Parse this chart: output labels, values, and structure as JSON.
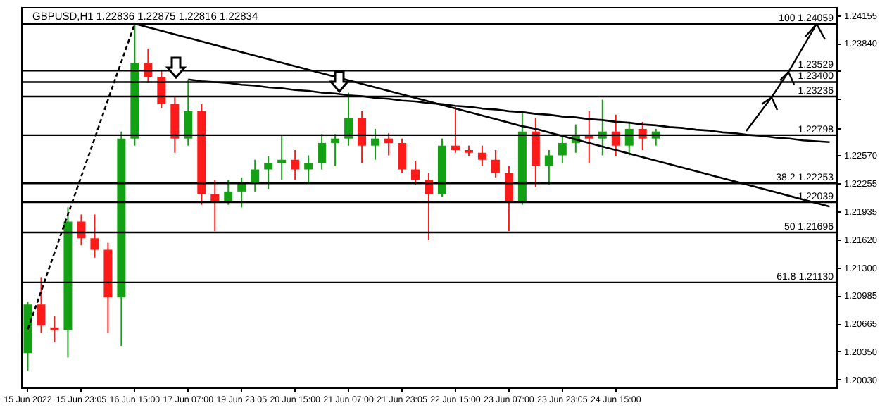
{
  "chart_data": {
    "type": "candlestick",
    "title": "GBPUSD,H1  1.22836 1.22875 1.22816 1.22834",
    "categories": [
      "15 Jun 2022",
      null,
      null,
      null,
      "15 Jun 23:05",
      null,
      null,
      null,
      "16 Jun 15:00",
      null,
      null,
      null,
      "17 Jun 07:00",
      null,
      null,
      null,
      "19 Jun 23:05",
      null,
      null,
      null,
      "20 Jun 15:00",
      null,
      null,
      null,
      "21 Jun 07:00",
      null,
      null,
      null,
      "21 Jun 23:05",
      null,
      null,
      null,
      "22 Jun 15:00",
      null,
      null,
      null,
      "23 Jun 07:00",
      null,
      null,
      null,
      "23 Jun 23:05",
      null,
      null,
      null,
      "24 Jun 15:00",
      null,
      null,
      null,
      null,
      null,
      null,
      null,
      null,
      null,
      null,
      null,
      null,
      null,
      null,
      null,
      null
    ],
    "ohlc": [
      [
        1.2033,
        1.2091,
        1.2013,
        1.2088
      ],
      [
        1.2088,
        1.2119,
        1.2056,
        1.2064
      ],
      [
        1.2062,
        1.2075,
        1.2045,
        1.2059
      ],
      [
        1.2059,
        1.2198,
        1.2028,
        1.2182
      ],
      [
        1.2182,
        1.219,
        1.2155,
        1.2163
      ],
      [
        1.2163,
        1.219,
        1.2141,
        1.215
      ],
      [
        1.215,
        1.2158,
        1.2056,
        1.2096
      ],
      [
        1.2096,
        1.2284,
        1.2041,
        1.2276
      ],
      [
        1.2276,
        1.2406,
        1.2268,
        1.2362
      ],
      [
        1.2362,
        1.2378,
        1.2339,
        1.2346
      ],
      [
        1.2346,
        1.2354,
        1.231,
        1.2315
      ],
      [
        1.2315,
        1.2323,
        1.226,
        1.2276
      ],
      [
        1.2276,
        1.2343,
        1.2268,
        1.2307
      ],
      [
        1.2307,
        1.2315,
        1.2201,
        1.2213
      ],
      [
        1.2213,
        1.2229,
        1.2171,
        1.2205
      ],
      [
        1.2205,
        1.2229,
        1.2201,
        1.2216
      ],
      [
        1.2216,
        1.2232,
        1.2198,
        1.2226
      ],
      [
        1.2226,
        1.2252,
        1.2216,
        1.2241
      ],
      [
        1.2241,
        1.2256,
        1.2219,
        1.2248
      ],
      [
        1.2248,
        1.2279,
        1.2229,
        1.2252
      ],
      [
        1.2252,
        1.2263,
        1.2229,
        1.2241
      ],
      [
        1.2241,
        1.2257,
        1.2226,
        1.2248
      ],
      [
        1.2248,
        1.2281,
        1.2241,
        1.2271
      ],
      [
        1.2271,
        1.2281,
        1.2245,
        1.2276
      ],
      [
        1.2276,
        1.2328,
        1.2268,
        1.2299
      ],
      [
        1.2299,
        1.2307,
        1.2248,
        1.2268
      ],
      [
        1.2268,
        1.2287,
        1.2252,
        1.2276
      ],
      [
        1.2276,
        1.2282,
        1.2257,
        1.2271
      ],
      [
        1.2271,
        1.2276,
        1.2237,
        1.2241
      ],
      [
        1.2241,
        1.2251,
        1.2224,
        1.2229
      ],
      [
        1.2229,
        1.2237,
        1.2161,
        1.2213
      ],
      [
        1.2213,
        1.2276,
        1.221,
        1.2268
      ],
      [
        1.2268,
        1.2312,
        1.226,
        1.2263
      ],
      [
        1.2263,
        1.2268,
        1.2256,
        1.226
      ],
      [
        1.226,
        1.2268,
        1.2245,
        1.2252
      ],
      [
        1.2252,
        1.2263,
        1.2232,
        1.2237
      ],
      [
        1.2237,
        1.2245,
        1.2171,
        1.2205
      ],
      [
        1.2205,
        1.2307,
        1.2201,
        1.2284
      ],
      [
        1.2284,
        1.2299,
        1.2221,
        1.2245
      ],
      [
        1.2245,
        1.2263,
        1.2224,
        1.2257
      ],
      [
        1.2257,
        1.2279,
        1.2248,
        1.2271
      ],
      [
        1.2271,
        1.2292,
        1.226,
        1.2279
      ],
      [
        1.2279,
        1.2307,
        1.2248,
        1.2276
      ],
      [
        1.2276,
        1.232,
        1.2257,
        1.2284
      ],
      [
        1.2284,
        1.2303,
        1.2256,
        1.2268
      ],
      [
        1.2268,
        1.2295,
        1.2257,
        1.2287
      ],
      [
        1.2287,
        1.2295,
        1.2263,
        1.2276
      ],
      [
        1.2276,
        1.2287,
        1.2268,
        1.2284
      ],
      null,
      null,
      null,
      null,
      null,
      null,
      null,
      null,
      null,
      null,
      null,
      null,
      null
    ],
    "colors": [
      "#14a014",
      "#ff1a1a",
      "#ff1a1a",
      "#14a014",
      "#ff1a1a",
      "#ff1a1a",
      "#ff1a1a",
      "#14a014",
      "#14a014",
      "#ff1a1a",
      "#ff1a1a",
      "#ff1a1a",
      "#14a014",
      "#ff1a1a",
      "#ff1a1a",
      "#14a014",
      "#14a014",
      "#14a014",
      "#14a014",
      "#14a014",
      "#ff1a1a",
      "#14a014",
      "#14a014",
      "#14a014",
      "#14a014",
      "#ff1a1a",
      "#14a014",
      "#ff1a1a",
      "#ff1a1a",
      "#ff1a1a",
      "#ff1a1a",
      "#14a014",
      "#ff1a1a",
      "#ff1a1a",
      "#ff1a1a",
      "#ff1a1a",
      "#ff1a1a",
      "#14a014",
      "#ff1a1a",
      "#14a014",
      "#14a014",
      "#14a014",
      "#ff1a1a",
      "#14a014",
      "#ff1a1a",
      "#14a014",
      "#ff1a1a",
      "#14a014",
      null,
      null,
      null,
      null,
      null,
      null,
      null,
      null,
      null,
      null,
      null,
      null,
      null
    ],
    "ylim": [
      1.1994,
      1.2425
    ],
    "yticks": [
      1.24155,
      {
        "value": 1.2384,
        "label": "1.23840"
      },
      {
        "value": 1.23525,
        "label": null
      },
      {
        "value": 1.2321,
        "label": null
      },
      {
        "value": 1.22885,
        "label": null
      },
      {
        "value": 1.2257,
        "label": "1.22570"
      },
      1.22255,
      1.21935,
      {
        "value": 1.2162,
        "label": "1.21620"
      },
      {
        "value": 1.213,
        "label": "1.21300"
      },
      1.20985,
      1.20665,
      {
        "value": 1.2035,
        "label": "1.20350"
      },
      {
        "value": 1.2003,
        "label": "1.20030"
      }
    ],
    "series": [
      {
        "type": "line",
        "color": "#000000",
        "line_style": "dashed",
        "values": [
          1.206,
          1.2103,
          1.2147,
          1.219,
          1.2233,
          1.2276,
          1.232,
          1.2363,
          1.2406,
          null,
          null,
          null,
          null,
          null,
          null,
          null,
          null,
          null,
          null,
          null,
          null,
          null,
          null,
          null,
          null,
          null,
          null,
          null,
          null,
          null,
          null,
          null,
          null,
          null,
          null,
          null,
          null,
          null,
          null,
          null,
          null,
          null,
          null,
          null,
          null,
          null,
          null,
          null,
          null,
          null,
          null,
          null,
          null,
          null,
          null,
          null,
          null,
          null,
          null,
          null,
          null
        ]
      },
      {
        "type": "line",
        "color": "#000000",
        "line_style": "solid",
        "values": [
          null,
          null,
          null,
          null,
          null,
          null,
          null,
          null,
          1.2406,
          1.2402,
          1.2398,
          1.2394,
          1.239,
          1.2386,
          1.2382,
          1.2378,
          1.2374,
          1.237,
          1.2366,
          1.2362,
          1.2358,
          1.2354,
          1.235,
          1.2346,
          1.2342,
          1.2338,
          1.2334,
          1.233,
          1.2326,
          1.2322,
          1.2318,
          1.2314,
          1.231,
          1.2306,
          1.2302,
          1.2298,
          1.2294,
          1.229,
          1.2287,
          1.2283,
          1.2279,
          1.2275,
          1.2271,
          1.2267,
          1.2263,
          1.2259,
          1.2255,
          1.2251,
          1.2247,
          1.2243,
          1.2239,
          1.2235,
          1.2231,
          1.2227,
          1.2223,
          1.2219,
          1.2215,
          1.2211,
          1.2207,
          1.2203,
          1.2199
        ]
      },
      {
        "type": "line",
        "color": "#000000",
        "line_style": "solid",
        "values": [
          null,
          null,
          null,
          null,
          null,
          null,
          null,
          null,
          null,
          null,
          null,
          null,
          1.2343,
          1.2341,
          1.234,
          1.2339,
          1.2337,
          1.2336,
          1.2334,
          1.2333,
          1.2331,
          1.233,
          1.2328,
          1.2327,
          1.2325,
          1.2324,
          1.2322,
          1.2321,
          1.2319,
          1.2318,
          1.2316,
          1.2315,
          1.2313,
          1.2312,
          1.231,
          1.2309,
          1.2307,
          1.2306,
          1.2304,
          1.2303,
          1.2301,
          1.23,
          1.2298,
          1.2297,
          1.2295,
          1.2294,
          1.2292,
          1.2291,
          1.2289,
          1.2288,
          1.2286,
          1.2285,
          1.2283,
          1.2282,
          1.228,
          1.2279,
          1.2277,
          1.2276,
          1.2274,
          1.2273,
          1.2272
        ]
      }
    ],
    "ref_lines": [
      {
        "axis": "y",
        "value": 1.24059,
        "label": "100 1.24059"
      },
      {
        "axis": "y",
        "value": 1.23529,
        "label": "1.23529"
      },
      {
        "axis": "y",
        "value": 1.234,
        "label": "1.23400"
      },
      {
        "axis": "y",
        "value": 1.23236,
        "label": "1.23236"
      },
      {
        "axis": "y",
        "value": 1.22798,
        "label": "1.22798"
      },
      {
        "axis": "y",
        "value": 1.22253,
        "label": "38.2 1.22253"
      },
      {
        "axis": "y",
        "value": 1.22039,
        "label": "1.22039"
      },
      {
        "axis": "y",
        "value": 1.21696,
        "label": "50 1.21696"
      },
      {
        "axis": "y",
        "value": 1.2113,
        "label": "61.8 1.21130"
      }
    ]
  }
}
